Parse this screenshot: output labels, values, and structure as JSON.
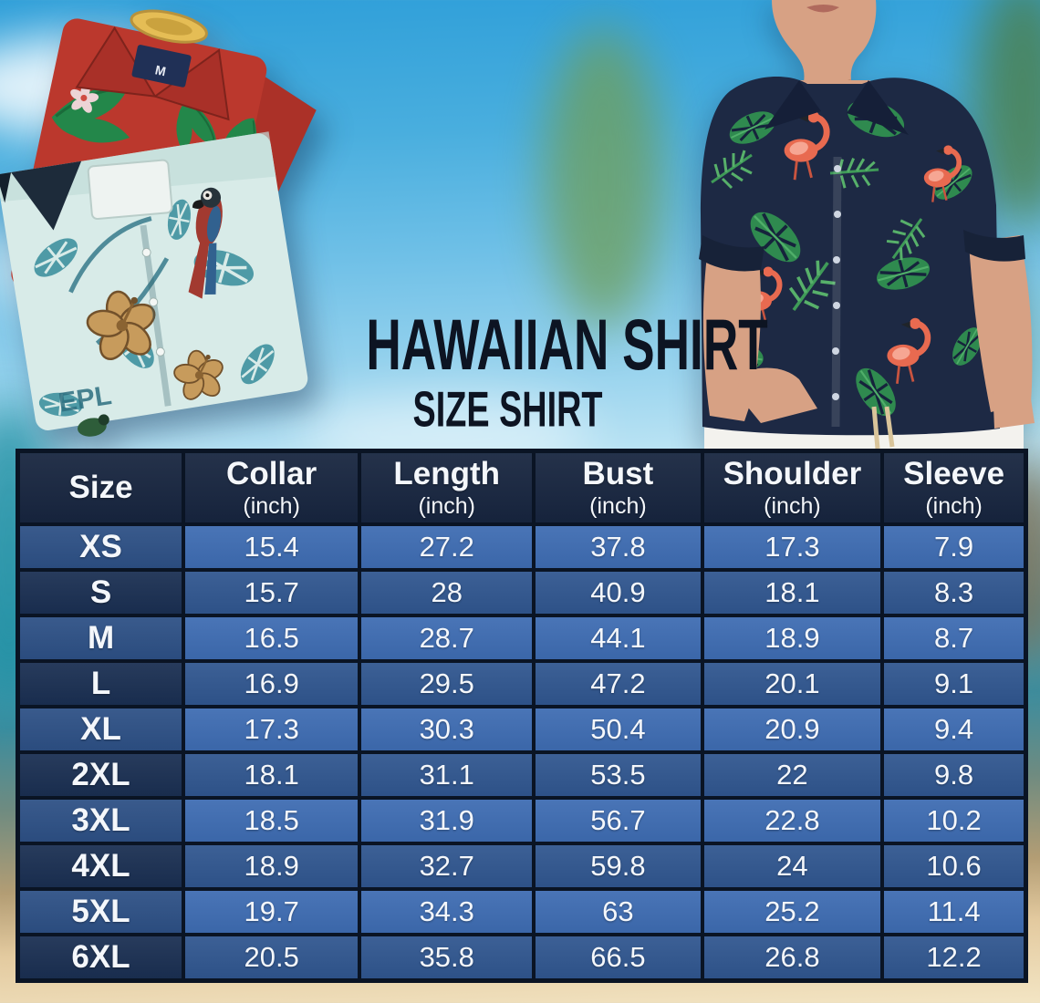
{
  "hero": {
    "title": "HAWAIIAN SHIRT",
    "subtitle": "SIZE SHIRT",
    "left_photo": {
      "description": "folded red and teal hawaiian shirts",
      "collar_tag_label": "M",
      "shirt_print_text": "EPL"
    },
    "right_photo": {
      "description": "man wearing navy flamingo hawaiian shirt with white pants"
    }
  },
  "size_table": {
    "columns": [
      {
        "label": "Size",
        "sub": ""
      },
      {
        "label": "Collar",
        "sub": "(inch)"
      },
      {
        "label": "Length",
        "sub": "(inch)"
      },
      {
        "label": "Bust",
        "sub": "(inch)"
      },
      {
        "label": "Shoulder",
        "sub": "(inch)"
      },
      {
        "label": "Sleeve",
        "sub": "(inch)"
      }
    ],
    "rows": [
      {
        "size": "XS",
        "collar": "15.4",
        "length": "27.2",
        "bust": "37.8",
        "shoulder": "17.3",
        "sleeve": "7.9"
      },
      {
        "size": "S",
        "collar": "15.7",
        "length": "28",
        "bust": "40.9",
        "shoulder": "18.1",
        "sleeve": "8.3"
      },
      {
        "size": "M",
        "collar": "16.5",
        "length": "28.7",
        "bust": "44.1",
        "shoulder": "18.9",
        "sleeve": "8.7"
      },
      {
        "size": "L",
        "collar": "16.9",
        "length": "29.5",
        "bust": "47.2",
        "shoulder": "20.1",
        "sleeve": "9.1"
      },
      {
        "size": "XL",
        "collar": "17.3",
        "length": "30.3",
        "bust": "50.4",
        "shoulder": "20.9",
        "sleeve": "9.4"
      },
      {
        "size": "2XL",
        "collar": "18.1",
        "length": "31.1",
        "bust": "53.5",
        "shoulder": "22",
        "sleeve": "9.8"
      },
      {
        "size": "3XL",
        "collar": "18.5",
        "length": "31.9",
        "bust": "56.7",
        "shoulder": "22.8",
        "sleeve": "10.2"
      },
      {
        "size": "4XL",
        "collar": "18.9",
        "length": "32.7",
        "bust": "59.8",
        "shoulder": "24",
        "sleeve": "10.6"
      },
      {
        "size": "5XL",
        "collar": "19.7",
        "length": "34.3",
        "bust": "63",
        "shoulder": "25.2",
        "sleeve": "11.4"
      },
      {
        "size": "6XL",
        "collar": "20.5",
        "length": "35.8",
        "bust": "66.5",
        "shoulder": "26.8",
        "sleeve": "12.2"
      }
    ]
  },
  "colors": {
    "table_header_bg": "#17253f",
    "row_odd_label_bg": "#2d5085",
    "row_odd_value_bg": "#3e6cb2",
    "row_even_label_bg": "#1a2f52",
    "row_even_value_bg": "#30568f",
    "table_border": "#0a1424",
    "title_text": "#0d1422",
    "sky": "#49aede",
    "sand": "#f3e5c4"
  },
  "chart_data": {
    "type": "table",
    "title": "HAWAIIAN SHIRT SIZE SHIRT",
    "columns": [
      "Size",
      "Collar (inch)",
      "Length (inch)",
      "Bust (inch)",
      "Shoulder (inch)",
      "Sleeve (inch)"
    ],
    "rows": [
      [
        "XS",
        15.4,
        27.2,
        37.8,
        17.3,
        7.9
      ],
      [
        "S",
        15.7,
        28,
        40.9,
        18.1,
        8.3
      ],
      [
        "M",
        16.5,
        28.7,
        44.1,
        18.9,
        8.7
      ],
      [
        "L",
        16.9,
        29.5,
        47.2,
        20.1,
        9.1
      ],
      [
        "XL",
        17.3,
        30.3,
        50.4,
        20.9,
        9.4
      ],
      [
        "2XL",
        18.1,
        31.1,
        53.5,
        22,
        9.8
      ],
      [
        "3XL",
        18.5,
        31.9,
        56.7,
        22.8,
        10.2
      ],
      [
        "4XL",
        18.9,
        32.7,
        59.8,
        24,
        10.6
      ],
      [
        "5XL",
        19.7,
        34.3,
        63,
        25.2,
        11.4
      ],
      [
        "6XL",
        20.5,
        35.8,
        66.5,
        26.8,
        12.2
      ]
    ]
  }
}
